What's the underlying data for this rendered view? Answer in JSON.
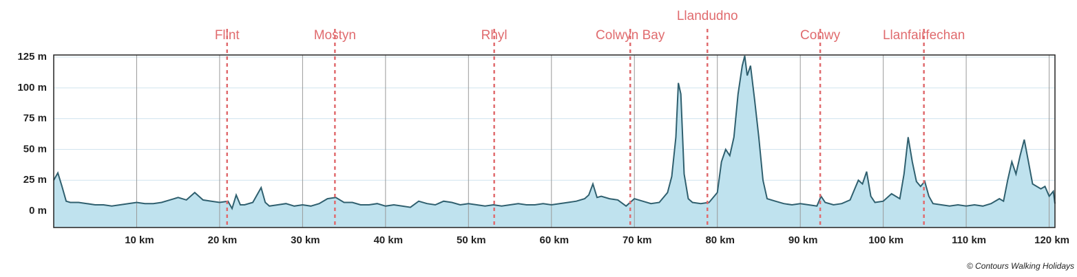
{
  "chart_data": {
    "type": "area",
    "x": [
      0,
      0.5,
      1,
      1.5,
      2,
      3,
      4,
      5,
      6,
      7,
      8,
      9,
      10,
      11,
      12,
      13,
      14,
      15,
      16,
      17,
      18,
      19,
      20,
      21,
      21.5,
      22,
      22.5,
      23,
      24,
      25,
      25.5,
      26,
      27,
      28,
      29,
      30,
      31,
      32,
      33,
      34,
      35,
      36,
      37,
      38,
      39,
      40,
      41,
      42,
      43,
      44,
      45,
      46,
      47,
      48,
      49,
      50,
      51,
      52,
      53,
      54,
      55,
      56,
      57,
      58,
      59,
      60,
      61,
      62,
      63,
      64,
      64.5,
      65,
      65.5,
      66,
      67,
      68,
      69,
      70,
      71,
      72,
      73,
      74,
      74.5,
      75,
      75.3,
      75.6,
      76,
      76.5,
      77,
      78,
      79,
      80,
      80.5,
      81,
      81.5,
      82,
      82.5,
      83,
      83.3,
      83.6,
      84,
      84.5,
      85,
      85.5,
      86,
      87,
      88,
      89,
      90,
      91,
      92,
      92.5,
      93,
      94,
      95,
      96,
      97,
      97.5,
      98,
      98.5,
      99,
      100,
      101,
      102,
      102.5,
      103,
      103.5,
      104,
      104.5,
      105,
      105.5,
      106,
      107,
      108,
      109,
      110,
      111,
      112,
      113,
      114,
      114.5,
      115,
      115.5,
      116,
      116.5,
      117,
      117.5,
      118,
      119,
      119.5,
      120,
      120.5,
      120.7
    ],
    "values": [
      25,
      31,
      20,
      8,
      7,
      7,
      6,
      5,
      5,
      4,
      5,
      6,
      7,
      6,
      6,
      7,
      9,
      11,
      9,
      15,
      9,
      8,
      7,
      8,
      2,
      13,
      5,
      5,
      7,
      19,
      7,
      4,
      5,
      6,
      4,
      5,
      4,
      6,
      10,
      11,
      7,
      7,
      5,
      5,
      6,
      4,
      5,
      4,
      3,
      8,
      6,
      5,
      8,
      7,
      5,
      6,
      5,
      4,
      5,
      4,
      5,
      6,
      5,
      5,
      6,
      5,
      6,
      7,
      8,
      10,
      13,
      22,
      11,
      12,
      10,
      9,
      4,
      10,
      8,
      6,
      7,
      15,
      28,
      60,
      104,
      95,
      30,
      10,
      7,
      6,
      7,
      15,
      40,
      50,
      45,
      60,
      95,
      118,
      126,
      110,
      118,
      90,
      60,
      25,
      10,
      8,
      6,
      5,
      6,
      5,
      4,
      12,
      7,
      5,
      6,
      9,
      25,
      22,
      32,
      12,
      7,
      8,
      14,
      10,
      30,
      60,
      40,
      24,
      20,
      24,
      12,
      6,
      5,
      4,
      5,
      4,
      5,
      4,
      6,
      10,
      8,
      25,
      40,
      30,
      45,
      58,
      40,
      22,
      18,
      20,
      12,
      16,
      6
    ],
    "color": "#2f5f6e",
    "fill": "#bfe2ee",
    "xlim": [
      0,
      120.7
    ],
    "ylim": [
      -13.4,
      126.7
    ],
    "xticks": [
      {
        "value": 10,
        "label": "10 km"
      },
      {
        "value": 20,
        "label": "20 km"
      },
      {
        "value": 30,
        "label": "30 km"
      },
      {
        "value": 40,
        "label": "40 km"
      },
      {
        "value": 50,
        "label": "50 km"
      },
      {
        "value": 60,
        "label": "60 km"
      },
      {
        "value": 70,
        "label": "70 km"
      },
      {
        "value": 80,
        "label": "80 km"
      },
      {
        "value": 90,
        "label": "90 km"
      },
      {
        "value": 100,
        "label": "100 km"
      },
      {
        "value": 110,
        "label": "110 km"
      },
      {
        "value": 120,
        "label": "120 km"
      }
    ],
    "yticks": [
      {
        "value": 0,
        "label": "0 m"
      },
      {
        "value": 25,
        "label": "25 m"
      },
      {
        "value": 50,
        "label": "50 m"
      },
      {
        "value": 75,
        "label": "75 m"
      },
      {
        "value": 100,
        "label": "100 m"
      },
      {
        "value": 125,
        "label": "125 m"
      }
    ],
    "grid": true,
    "markers": [
      {
        "label": "Flint",
        "x": 20.9
      },
      {
        "label": "Mostyn",
        "x": 33.9
      },
      {
        "label": "Rhyl",
        "x": 53.1
      },
      {
        "label": "Colwyn Bay",
        "x": 69.5
      },
      {
        "label": "Llandudno",
        "x": 78.8
      },
      {
        "label": "Conwy",
        "x": 92.4
      },
      {
        "label": "Llanfairfechan",
        "x": 104.9
      }
    ],
    "marker_color": "#e06b6e",
    "credit": "© Contours Walking Holidays"
  }
}
